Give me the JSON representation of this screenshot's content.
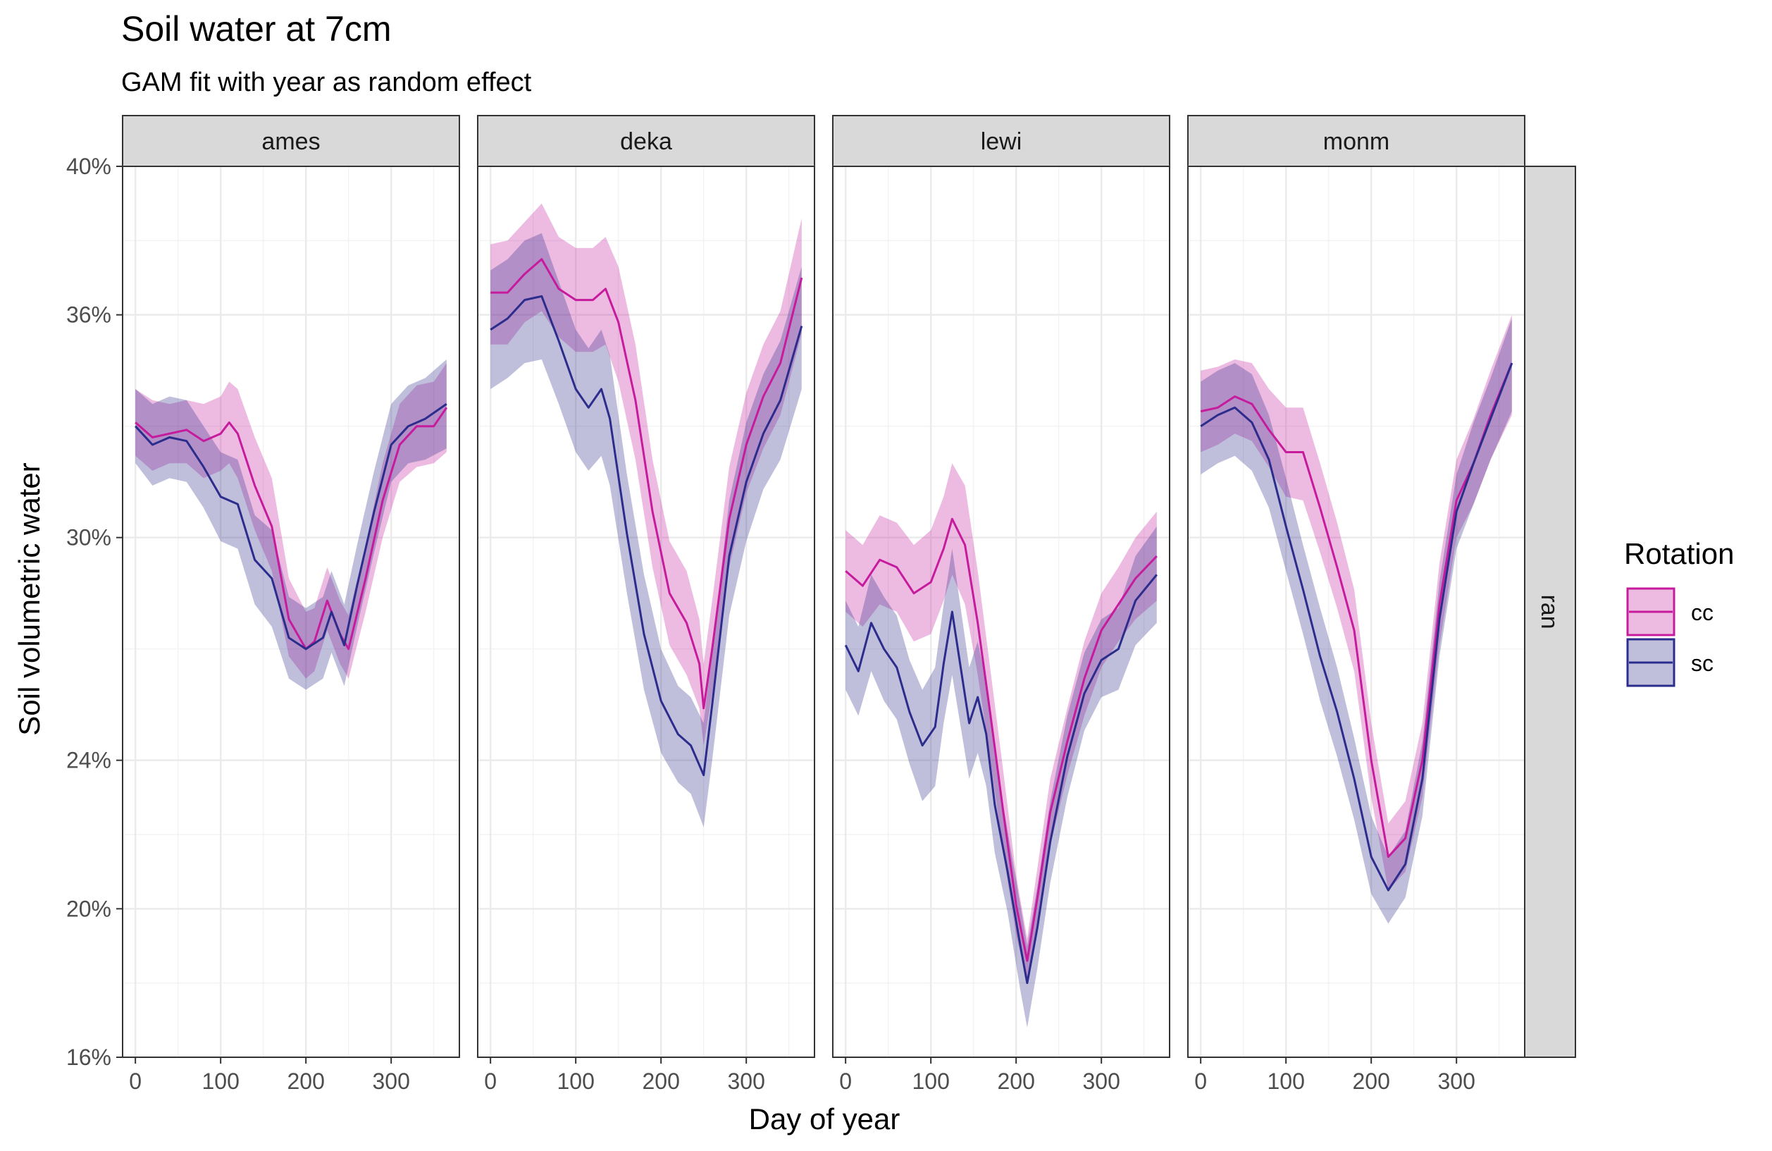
{
  "title": "Soil water at 7cm",
  "subtitle": "GAM fit with year as random effect",
  "colors": {
    "cc": "#C51B9C",
    "sc": "#2B2C8C",
    "strip_bg": "#D9D9D9",
    "grid": "#EBEBEB"
  },
  "chart_data": {
    "type": "line",
    "title": "Soil water at 7cm",
    "subtitle": "GAM fit with year as random effect",
    "xlabel": "Day of year",
    "ylabel": "Soil volumetric water",
    "xlim": [
      -15,
      380
    ],
    "ylim": [
      0.16,
      0.4
    ],
    "x_ticks": [
      0,
      100,
      200,
      300
    ],
    "x_tick_labels": [
      "0",
      "100",
      "200",
      "300"
    ],
    "y_ticks": [
      0.16,
      0.2,
      0.24,
      0.3,
      0.36,
      0.4
    ],
    "y_tick_labels": [
      "16%",
      "20%",
      "24%",
      "30%",
      "36%",
      "40%"
    ],
    "grid": true,
    "legend": {
      "title": "Rotation",
      "position": "right",
      "entries": [
        "cc",
        "sc"
      ]
    },
    "facet_row_label": "ran",
    "panels": [
      {
        "label": "ames",
        "series": [
          {
            "name": "cc",
            "x": [
              0,
              20,
              40,
              60,
              80,
              100,
              110,
              120,
              140,
              160,
              180,
              200,
              210,
              225,
              240,
              250,
              270,
              290,
              310,
              330,
              350,
              365
            ],
            "y": [
              0.331,
              0.327,
              0.328,
              0.329,
              0.326,
              0.328,
              0.331,
              0.328,
              0.314,
              0.303,
              0.278,
              0.27,
              0.272,
              0.283,
              0.274,
              0.27,
              0.289,
              0.31,
              0.325,
              0.33,
              0.33,
              0.335
            ],
            "lower": [
              0.322,
              0.318,
              0.32,
              0.32,
              0.316,
              0.318,
              0.32,
              0.316,
              0.302,
              0.291,
              0.268,
              0.262,
              0.264,
              0.275,
              0.266,
              0.262,
              0.28,
              0.3,
              0.315,
              0.319,
              0.32,
              0.323
            ],
            "upper": [
              0.34,
              0.337,
              0.336,
              0.337,
              0.336,
              0.338,
              0.342,
              0.34,
              0.327,
              0.316,
              0.289,
              0.28,
              0.281,
              0.292,
              0.283,
              0.279,
              0.298,
              0.32,
              0.336,
              0.341,
              0.342,
              0.347
            ]
          },
          {
            "name": "sc",
            "x": [
              0,
              20,
              40,
              60,
              80,
              100,
              120,
              140,
              160,
              180,
              200,
              220,
              230,
              245,
              260,
              280,
              300,
              320,
              340,
              365
            ],
            "y": [
              0.33,
              0.325,
              0.327,
              0.326,
              0.319,
              0.311,
              0.309,
              0.294,
              0.289,
              0.273,
              0.27,
              0.273,
              0.28,
              0.271,
              0.287,
              0.307,
              0.325,
              0.33,
              0.332,
              0.336
            ],
            "lower": [
              0.32,
              0.314,
              0.316,
              0.315,
              0.308,
              0.299,
              0.297,
              0.282,
              0.276,
              0.262,
              0.259,
              0.262,
              0.269,
              0.26,
              0.276,
              0.296,
              0.315,
              0.32,
              0.321,
              0.324
            ],
            "upper": [
              0.34,
              0.336,
              0.338,
              0.337,
              0.33,
              0.323,
              0.321,
              0.306,
              0.302,
              0.284,
              0.281,
              0.284,
              0.291,
              0.282,
              0.298,
              0.318,
              0.336,
              0.341,
              0.343,
              0.348
            ]
          }
        ]
      },
      {
        "label": "deka",
        "series": [
          {
            "name": "cc",
            "x": [
              0,
              20,
              40,
              60,
              80,
              100,
              120,
              135,
              150,
              170,
              190,
              210,
              230,
              245,
              250,
              260,
              280,
              300,
              320,
              340,
              365
            ],
            "y": [
              0.366,
              0.366,
              0.371,
              0.375,
              0.367,
              0.364,
              0.364,
              0.367,
              0.358,
              0.337,
              0.307,
              0.285,
              0.277,
              0.266,
              0.254,
              0.27,
              0.305,
              0.325,
              0.338,
              0.347,
              0.37
            ],
            "lower": [
              0.352,
              0.352,
              0.358,
              0.361,
              0.354,
              0.35,
              0.35,
              0.352,
              0.342,
              0.321,
              0.292,
              0.271,
              0.263,
              0.254,
              0.244,
              0.258,
              0.292,
              0.312,
              0.324,
              0.333,
              0.355
            ],
            "upper": [
              0.379,
              0.38,
              0.385,
              0.39,
              0.381,
              0.378,
              0.378,
              0.381,
              0.373,
              0.352,
              0.321,
              0.299,
              0.291,
              0.278,
              0.266,
              0.283,
              0.319,
              0.339,
              0.352,
              0.361,
              0.386
            ]
          },
          {
            "name": "sc",
            "x": [
              0,
              20,
              40,
              60,
              80,
              100,
              115,
              130,
              140,
              160,
              180,
              200,
              220,
              235,
              250,
              260,
              280,
              300,
              320,
              340,
              365
            ],
            "y": [
              0.356,
              0.359,
              0.364,
              0.365,
              0.353,
              0.34,
              0.335,
              0.34,
              0.332,
              0.301,
              0.274,
              0.256,
              0.247,
              0.244,
              0.236,
              0.255,
              0.295,
              0.315,
              0.328,
              0.337,
              0.357
            ],
            "lower": [
              0.34,
              0.343,
              0.347,
              0.348,
              0.336,
              0.323,
              0.318,
              0.322,
              0.314,
              0.285,
              0.259,
              0.242,
              0.234,
              0.231,
              0.222,
              0.24,
              0.279,
              0.299,
              0.313,
              0.321,
              0.34
            ],
            "upper": [
              0.372,
              0.375,
              0.38,
              0.382,
              0.369,
              0.356,
              0.351,
              0.356,
              0.349,
              0.317,
              0.29,
              0.27,
              0.26,
              0.257,
              0.25,
              0.27,
              0.31,
              0.331,
              0.344,
              0.353,
              0.373
            ]
          }
        ]
      },
      {
        "label": "lewi",
        "series": [
          {
            "name": "cc",
            "x": [
              0,
              20,
              40,
              60,
              80,
              100,
              115,
              125,
              140,
              155,
              170,
              185,
              200,
              213,
              225,
              240,
              260,
              280,
              300,
              320,
              340,
              365
            ],
            "y": [
              0.291,
              0.287,
              0.294,
              0.292,
              0.285,
              0.288,
              0.297,
              0.305,
              0.298,
              0.277,
              0.252,
              0.226,
              0.201,
              0.186,
              0.203,
              0.226,
              0.245,
              0.262,
              0.275,
              0.282,
              0.289,
              0.295
            ],
            "lower": [
              0.28,
              0.276,
              0.282,
              0.28,
              0.272,
              0.274,
              0.283,
              0.29,
              0.282,
              0.263,
              0.24,
              0.215,
              0.193,
              0.18,
              0.195,
              0.217,
              0.236,
              0.252,
              0.265,
              0.272,
              0.278,
              0.283
            ],
            "upper": [
              0.302,
              0.298,
              0.306,
              0.304,
              0.298,
              0.302,
              0.311,
              0.32,
              0.314,
              0.291,
              0.264,
              0.237,
              0.209,
              0.192,
              0.211,
              0.235,
              0.254,
              0.272,
              0.285,
              0.292,
              0.3,
              0.307
            ]
          },
          {
            "name": "sc",
            "x": [
              0,
              15,
              30,
              45,
              60,
              75,
              90,
              105,
              115,
              125,
              135,
              145,
              155,
              165,
              175,
              190,
              205,
              213,
              225,
              240,
              260,
              280,
              300,
              320,
              340,
              365
            ],
            "y": [
              0.271,
              0.264,
              0.277,
              0.27,
              0.265,
              0.253,
              0.244,
              0.249,
              0.266,
              0.28,
              0.265,
              0.25,
              0.257,
              0.247,
              0.228,
              0.21,
              0.19,
              0.18,
              0.195,
              0.218,
              0.241,
              0.258,
              0.267,
              0.27,
              0.283,
              0.29
            ],
            "lower": [
              0.259,
              0.252,
              0.264,
              0.256,
              0.251,
              0.239,
              0.229,
              0.233,
              0.25,
              0.263,
              0.249,
              0.235,
              0.242,
              0.233,
              0.215,
              0.199,
              0.178,
              0.168,
              0.184,
              0.207,
              0.23,
              0.248,
              0.257,
              0.259,
              0.271,
              0.277
            ],
            "upper": [
              0.283,
              0.276,
              0.29,
              0.284,
              0.279,
              0.267,
              0.259,
              0.265,
              0.282,
              0.297,
              0.281,
              0.265,
              0.272,
              0.261,
              0.241,
              0.221,
              0.201,
              0.19,
              0.206,
              0.229,
              0.252,
              0.269,
              0.278,
              0.281,
              0.295,
              0.303
            ]
          }
        ]
      },
      {
        "label": "monm",
        "series": [
          {
            "name": "cc",
            "x": [
              0,
              20,
              40,
              60,
              80,
              100,
              120,
              140,
              160,
              180,
              200,
              220,
              240,
              260,
              280,
              300,
              320,
              340,
              365
            ],
            "y": [
              0.334,
              0.335,
              0.338,
              0.336,
              0.329,
              0.323,
              0.323,
              0.308,
              0.292,
              0.275,
              0.24,
              0.214,
              0.219,
              0.24,
              0.282,
              0.31,
              0.32,
              0.333,
              0.347
            ],
            "lower": [
              0.323,
              0.325,
              0.328,
              0.326,
              0.319,
              0.311,
              0.31,
              0.296,
              0.281,
              0.264,
              0.23,
              0.205,
              0.21,
              0.23,
              0.271,
              0.3,
              0.309,
              0.321,
              0.333
            ],
            "upper": [
              0.345,
              0.346,
              0.348,
              0.347,
              0.34,
              0.335,
              0.335,
              0.32,
              0.304,
              0.286,
              0.25,
              0.223,
              0.229,
              0.25,
              0.293,
              0.321,
              0.332,
              0.345,
              0.36
            ]
          },
          {
            "name": "sc",
            "x": [
              0,
              20,
              40,
              60,
              80,
              100,
              120,
              140,
              160,
              180,
              200,
              220,
              240,
              260,
              280,
              300,
              320,
              340,
              365
            ],
            "y": [
              0.33,
              0.333,
              0.335,
              0.331,
              0.321,
              0.303,
              0.286,
              0.268,
              0.253,
              0.235,
              0.214,
              0.205,
              0.212,
              0.235,
              0.278,
              0.307,
              0.32,
              0.332,
              0.347
            ],
            "lower": [
              0.317,
              0.32,
              0.322,
              0.318,
              0.308,
              0.291,
              0.274,
              0.256,
              0.241,
              0.224,
              0.204,
              0.196,
              0.203,
              0.225,
              0.268,
              0.297,
              0.309,
              0.321,
              0.334
            ],
            "upper": [
              0.342,
              0.345,
              0.347,
              0.344,
              0.333,
              0.316,
              0.298,
              0.281,
              0.265,
              0.246,
              0.225,
              0.214,
              0.221,
              0.245,
              0.288,
              0.317,
              0.331,
              0.343,
              0.359
            ]
          }
        ]
      }
    ]
  }
}
